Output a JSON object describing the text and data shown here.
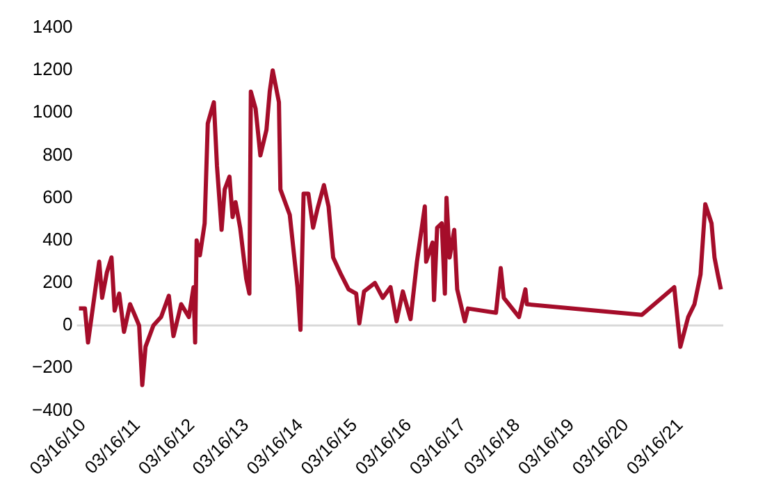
{
  "chart_data": {
    "type": "line",
    "x": [
      "2010-02-15",
      "2010-03-27",
      "2010-04-17",
      "2010-07-01",
      "2010-07-21",
      "2010-08-22",
      "2010-09-22",
      "2010-10-13",
      "2010-11-13",
      "2010-12-15",
      "2011-01-25",
      "2011-02-25",
      "2011-03-27",
      "2011-04-17",
      "2011-05-09",
      "2011-07-01",
      "2011-08-22",
      "2011-10-13",
      "2011-11-13",
      "2012-01-04",
      "2012-02-25",
      "2012-03-27",
      "2012-04-07",
      "2012-04-17",
      "2012-05-09",
      "2012-06-10",
      "2012-07-01",
      "2012-07-21",
      "2012-08-11",
      "2012-09-01",
      "2012-10-02",
      "2012-10-23",
      "2012-11-24",
      "2012-12-15",
      "2013-01-04",
      "2013-02-04",
      "2013-03-17",
      "2013-04-07",
      "2013-04-17",
      "2013-05-19",
      "2013-06-20",
      "2013-07-31",
      "2013-08-22",
      "2013-09-11",
      "2013-10-23",
      "2013-11-02",
      "2014-01-04",
      "2014-02-25",
      "2014-03-17",
      "2014-04-07",
      "2014-05-09",
      "2014-06-10",
      "2014-07-10",
      "2014-08-22",
      "2014-09-22",
      "2014-10-23",
      "2014-12-15",
      "2015-02-04",
      "2015-03-27",
      "2015-04-17",
      "2015-05-19",
      "2015-07-31",
      "2015-09-22",
      "2015-11-13",
      "2015-12-24",
      "2016-02-04",
      "2016-03-27",
      "2016-05-09",
      "2016-07-01",
      "2016-07-10",
      "2016-08-22",
      "2016-09-01",
      "2016-09-22",
      "2016-10-23",
      "2016-11-13",
      "2016-11-24",
      "2016-12-15",
      "2017-01-15",
      "2017-02-04",
      "2017-03-27",
      "2017-04-17",
      "2017-10-23",
      "2017-11-24",
      "2017-12-15",
      "2018-03-27",
      "2018-05-09",
      "2018-05-19",
      "2020-07-01",
      "2021-02-04",
      "2021-03-17",
      "2021-05-09",
      "2021-06-20",
      "2021-07-31",
      "2021-09-01",
      "2021-10-13",
      "2021-11-02",
      "2021-11-24",
      "2021-12-15"
    ],
    "series": [
      {
        "color": "#a50d2a",
        "values": [
          80,
          80,
          -80,
          300,
          130,
          250,
          320,
          70,
          150,
          -30,
          100,
          50,
          0,
          -280,
          -100,
          0,
          40,
          140,
          -50,
          100,
          40,
          180,
          -80,
          400,
          330,
          480,
          950,
          1000,
          1050,
          750,
          450,
          640,
          700,
          510,
          580,
          460,
          220,
          150,
          1100,
          1020,
          800,
          920,
          1100,
          1200,
          1050,
          640,
          520,
          180,
          -20,
          620,
          620,
          460,
          550,
          660,
          560,
          320,
          240,
          170,
          150,
          10,
          160,
          200,
          130,
          180,
          20,
          160,
          30,
          300,
          560,
          300,
          390,
          120,
          460,
          480,
          150,
          600,
          320,
          450,
          170,
          20,
          80,
          60,
          270,
          130,
          40,
          170,
          100,
          50,
          180,
          -100,
          40,
          100,
          240,
          570,
          480,
          320,
          240,
          170
        ]
      }
    ],
    "xlim": [
      "2010-02-01",
      "2021-12-31"
    ],
    "xticks": [
      {
        "value": "2010-03-16",
        "label": "03/16/10"
      },
      {
        "value": "2011-03-16",
        "label": "03/16/11"
      },
      {
        "value": "2012-03-16",
        "label": "03/16/12"
      },
      {
        "value": "2013-03-16",
        "label": "03/16/13"
      },
      {
        "value": "2014-03-16",
        "label": "03/16/14"
      },
      {
        "value": "2015-03-16",
        "label": "03/16/15"
      },
      {
        "value": "2016-03-16",
        "label": "03/16/16"
      },
      {
        "value": "2017-03-16",
        "label": "03/16/17"
      },
      {
        "value": "2018-03-16",
        "label": "03/16/18"
      },
      {
        "value": "2019-03-16",
        "label": "03/16/19"
      },
      {
        "value": "2020-03-16",
        "label": "03/16/20"
      },
      {
        "value": "2021-03-16",
        "label": "03/16/21"
      }
    ],
    "ylim": [
      -400,
      1400
    ],
    "yticks": [
      -400,
      -200,
      0,
      200,
      400,
      600,
      800,
      1000,
      1200,
      1400
    ],
    "ref_lines": [
      {
        "axis": "y",
        "value": 0,
        "color": "#d9d9d9"
      }
    ],
    "grid": false,
    "legend": false,
    "marker": "none",
    "line_style": "solid"
  }
}
